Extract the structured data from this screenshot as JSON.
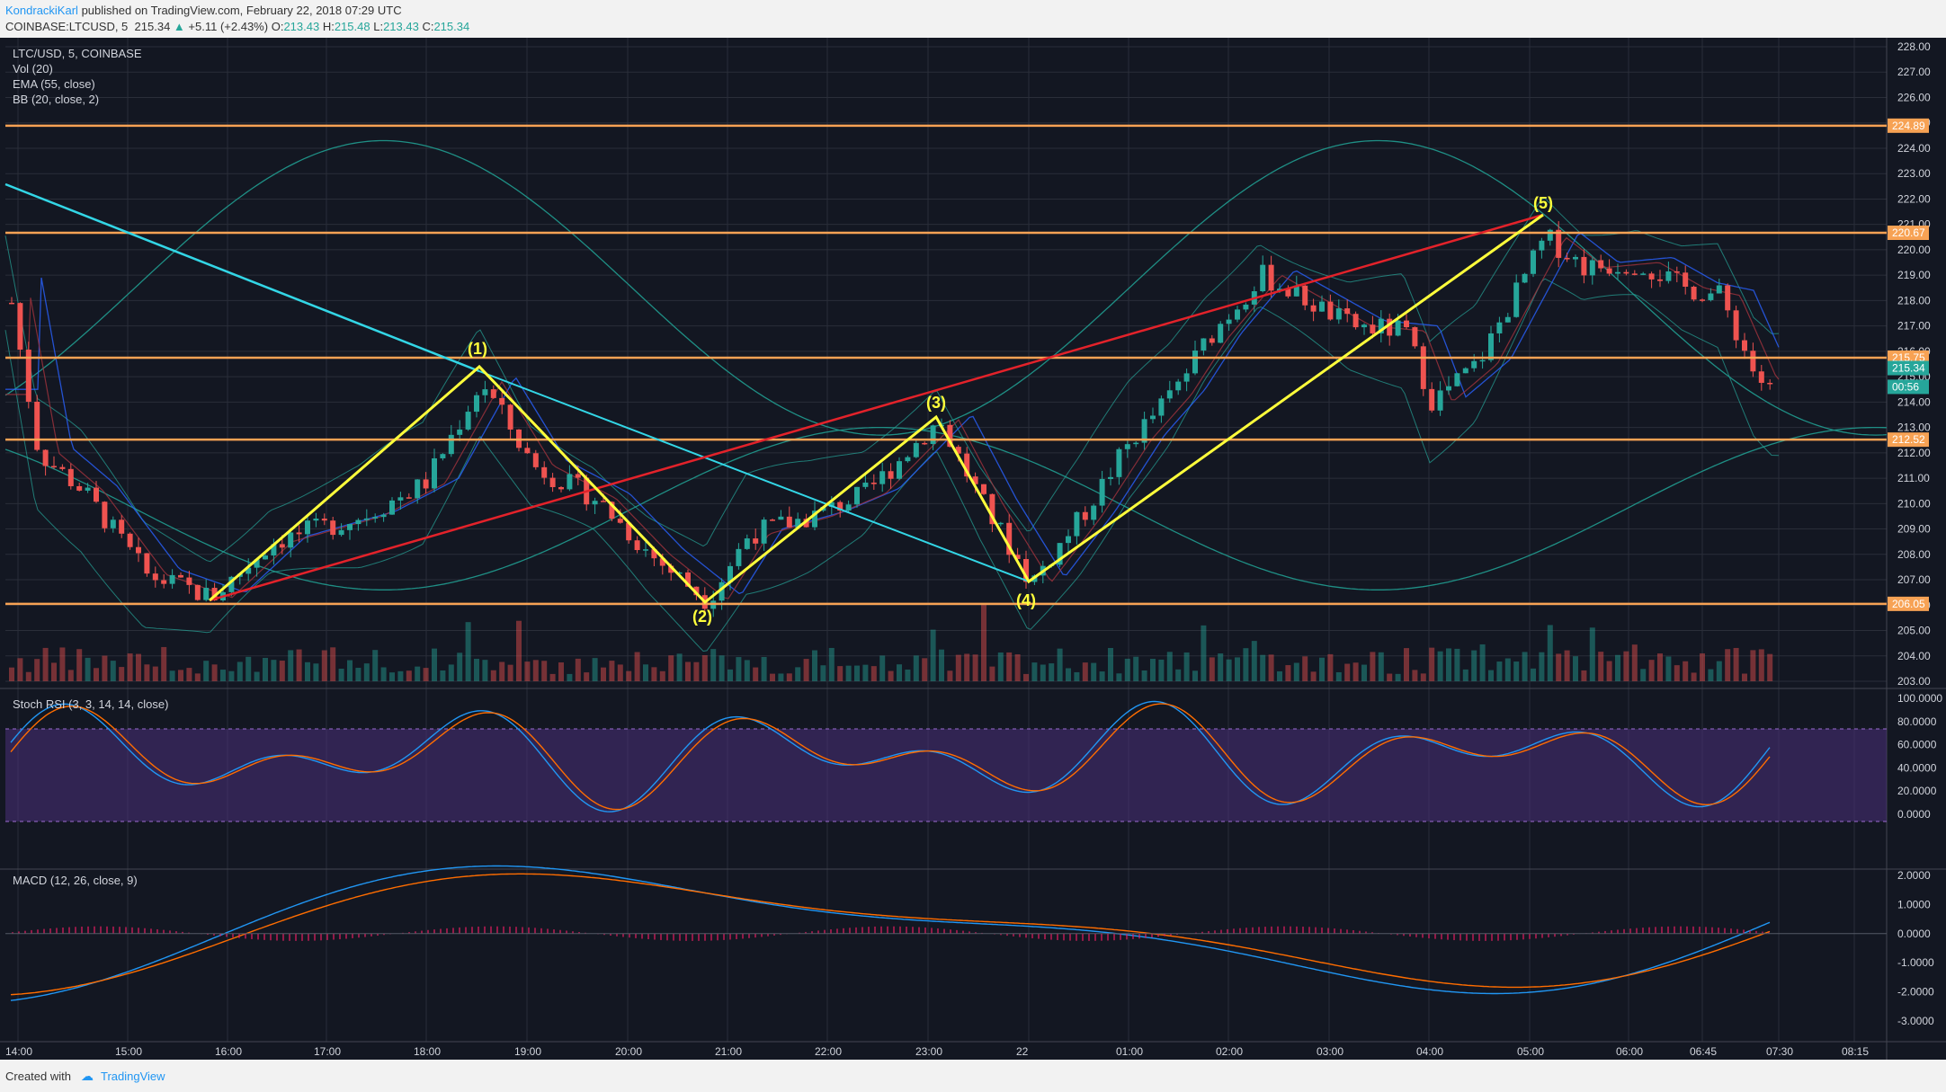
{
  "header": {
    "author": "KondrackiKarl",
    "published": "published on TradingView.com, February 22, 2018 07:29 UTC",
    "symbol": "COINBASE:LTCUSD, 5",
    "price": "215.34",
    "change_arrow": "▲",
    "change": "+5.11 (+2.43%)",
    "o_label": "O:",
    "o": "213.43",
    "h_label": "H:",
    "h": "215.48",
    "l_label": "L:",
    "l": "213.43",
    "c_label": "C:",
    "c": "215.34"
  },
  "legend": {
    "symbol": "LTC/USD, 5, COINBASE",
    "vol": "Vol (20)",
    "ema": "EMA (55, close)",
    "bb": "BB (20, close, 2)",
    "stoch": "Stoch RSI (3, 3, 14, 14, close)",
    "macd": "MACD (12, 26, close, 9)"
  },
  "price_axis": [
    "228.00",
    "227.00",
    "226.00",
    "225.00",
    "224.00",
    "223.00",
    "222.00",
    "221.00",
    "220.00",
    "219.00",
    "218.00",
    "217.00",
    "216.00",
    "215.00",
    "214.00",
    "213.00",
    "212.00",
    "211.00",
    "210.00",
    "209.00",
    "208.00",
    "207.00",
    "206.00",
    "205.00",
    "204.00",
    "203.00"
  ],
  "price_tags": [
    {
      "value": "224.89",
      "color": "#f7a254"
    },
    {
      "value": "220.67",
      "color": "#f7a254"
    },
    {
      "value": "215.75",
      "color": "#f7a254"
    },
    {
      "value": "215.34",
      "color": "#26a69a"
    },
    {
      "value": "00:56",
      "color": "#26a69a"
    },
    {
      "value": "212.52",
      "color": "#f7a254"
    },
    {
      "value": "206.05",
      "color": "#f7a254"
    }
  ],
  "stoch_axis": [
    "100.0000",
    "80.0000",
    "60.0000",
    "40.0000",
    "20.0000",
    "0.0000"
  ],
  "macd_axis": [
    "2.0000",
    "1.0000",
    "0.0000",
    "-1.0000",
    "-2.0000",
    "-3.0000"
  ],
  "time_axis": [
    "14:00",
    "15:00",
    "16:00",
    "17:00",
    "18:00",
    "19:00",
    "20:00",
    "21:00",
    "22:00",
    "23:00",
    "22",
    "01:00",
    "02:00",
    "03:00",
    "04:00",
    "05:00",
    "06:00",
    "06:45",
    "07:30",
    "08:15"
  ],
  "waves": [
    "(1)",
    "(2)",
    "(3)",
    "(4)",
    "(5)"
  ],
  "horizontal_levels": [
    224.89,
    220.67,
    215.75,
    212.52,
    206.05
  ],
  "colors": {
    "up": "#26a69a",
    "down": "#ef5350",
    "level": "#f7a254",
    "wave": "#ffff3b",
    "trend_cyan": "#33d6e6",
    "trend_red": "#e3222a",
    "bb": "#26a69a",
    "stoch_band": "#4b2f7a",
    "macd": "#2196f3",
    "signal": "#ff6d00"
  },
  "footer": {
    "created": "Created with",
    "brand": "TradingView"
  }
}
